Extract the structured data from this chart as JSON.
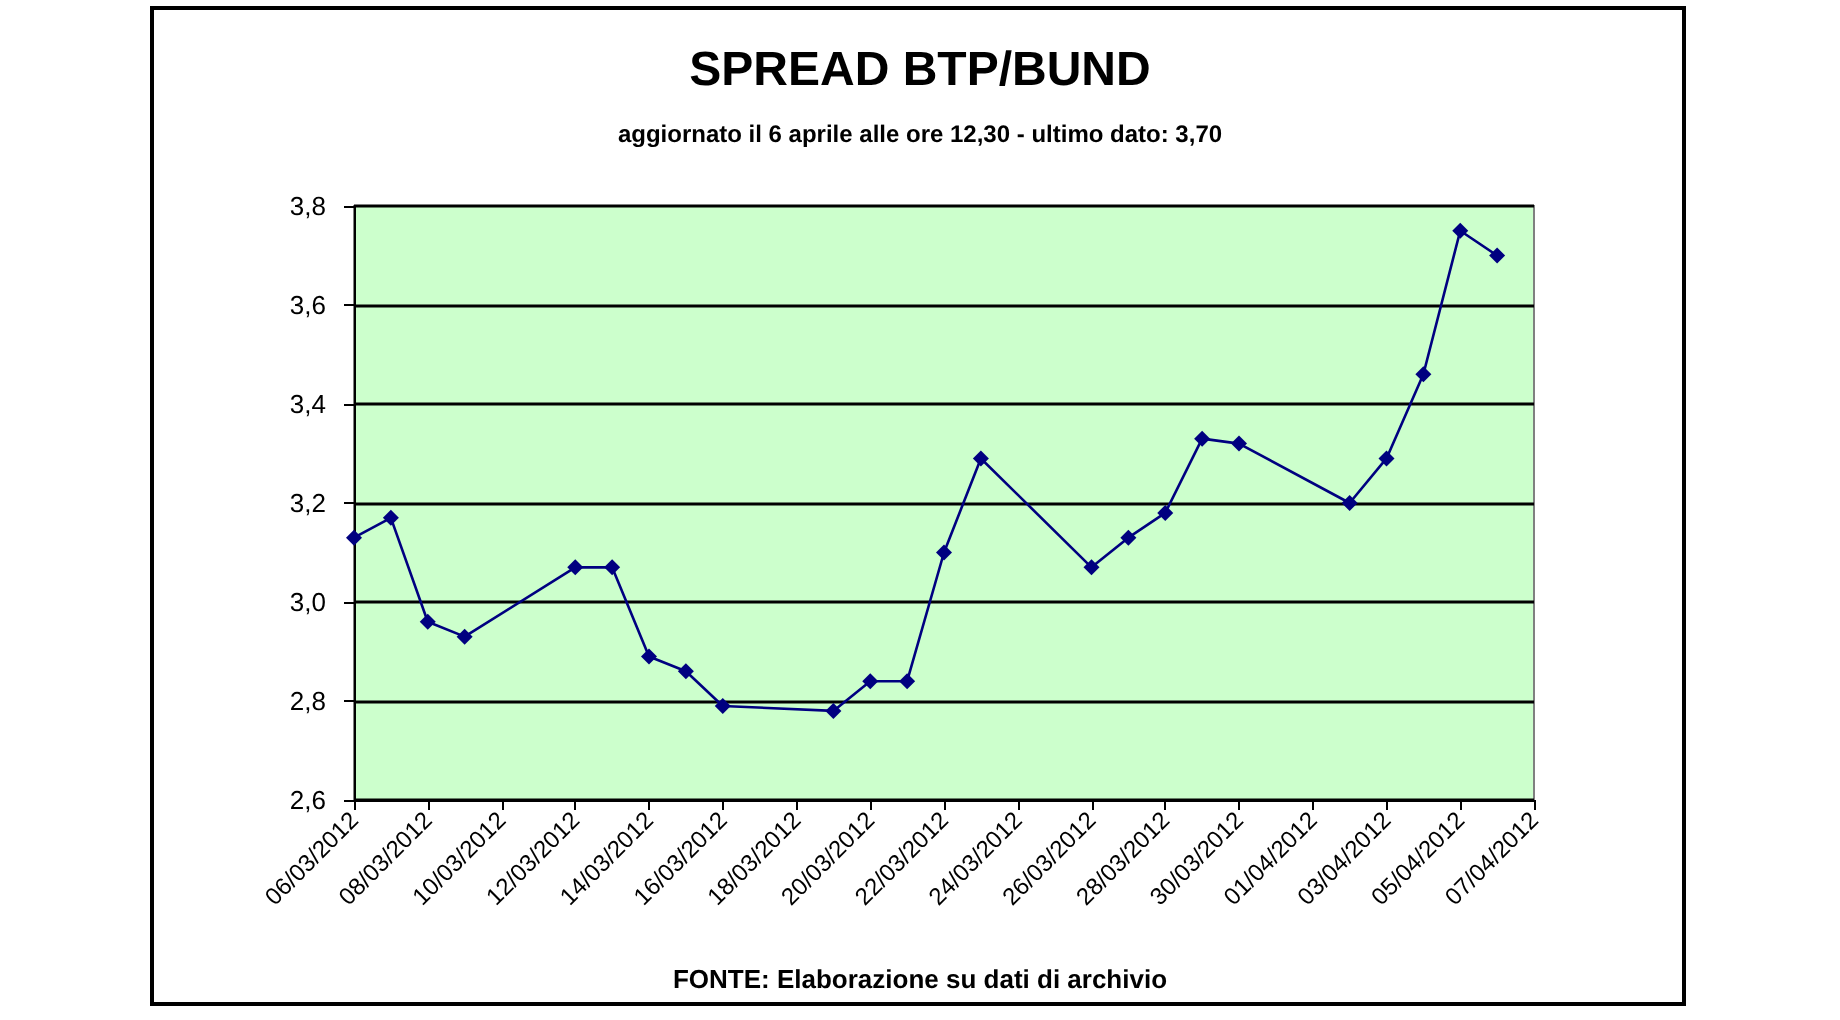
{
  "chart_data": {
    "type": "line",
    "title": "SPREAD BTP/BUND",
    "subtitle": "aggiornato il 6 aprile alle ore 12,30 - ultimo dato: 3,70",
    "annotations": [
      "FONTE: Elaborazione su dati di archivio"
    ],
    "x": [
      "2012-03-06",
      "2012-03-07",
      "2012-03-08",
      "2012-03-09",
      "2012-03-12",
      "2012-03-13",
      "2012-03-14",
      "2012-03-15",
      "2012-03-16",
      "2012-03-19",
      "2012-03-20",
      "2012-03-21",
      "2012-03-22",
      "2012-03-23",
      "2012-03-26",
      "2012-03-27",
      "2012-03-28",
      "2012-03-29",
      "2012-03-30",
      "2012-04-02",
      "2012-04-03",
      "2012-04-04",
      "2012-04-05",
      "2012-04-06"
    ],
    "series": [
      {
        "color": "#000080",
        "values": [
          3.13,
          3.17,
          2.96,
          2.93,
          3.07,
          3.07,
          2.89,
          2.86,
          2.79,
          2.78,
          2.84,
          2.84,
          3.1,
          3.29,
          3.07,
          3.13,
          3.18,
          3.33,
          3.32,
          3.2,
          3.29,
          3.46,
          3.75,
          3.7
        ]
      }
    ],
    "xlim": [
      "2012-03-06",
      "2012-04-07"
    ],
    "xticks": [
      {
        "value": "2012-03-06",
        "label": "06/03/2012"
      },
      {
        "value": "2012-03-08",
        "label": "08/03/2012"
      },
      {
        "value": "2012-03-10",
        "label": "10/03/2012"
      },
      {
        "value": "2012-03-12",
        "label": "12/03/2012"
      },
      {
        "value": "2012-03-14",
        "label": "14/03/2012"
      },
      {
        "value": "2012-03-16",
        "label": "16/03/2012"
      },
      {
        "value": "2012-03-18",
        "label": "18/03/2012"
      },
      {
        "value": "2012-03-20",
        "label": "20/03/2012"
      },
      {
        "value": "2012-03-22",
        "label": "22/03/2012"
      },
      {
        "value": "2012-03-24",
        "label": "24/03/2012"
      },
      {
        "value": "2012-03-26",
        "label": "26/03/2012"
      },
      {
        "value": "2012-03-28",
        "label": "28/03/2012"
      },
      {
        "value": "2012-03-30",
        "label": "30/03/2012"
      },
      {
        "value": "2012-04-01",
        "label": "01/04/2012"
      },
      {
        "value": "2012-04-03",
        "label": "03/04/2012"
      },
      {
        "value": "2012-04-05",
        "label": "05/04/2012"
      },
      {
        "value": "2012-04-07",
        "label": "07/04/2012"
      }
    ],
    "ylim": [
      2.6,
      3.8
    ],
    "yticks": [
      {
        "value": 2.6,
        "label": "2,6"
      },
      {
        "value": 2.8,
        "label": "2,8"
      },
      {
        "value": 3.0,
        "label": "3,0"
      },
      {
        "value": 3.2,
        "label": "3,2"
      },
      {
        "value": 3.4,
        "label": "3,4"
      },
      {
        "value": 3.6,
        "label": "3,6"
      },
      {
        "value": 3.8,
        "label": "3,8"
      }
    ],
    "grid": "y",
    "marker": "diamond",
    "line_style": "solid"
  }
}
